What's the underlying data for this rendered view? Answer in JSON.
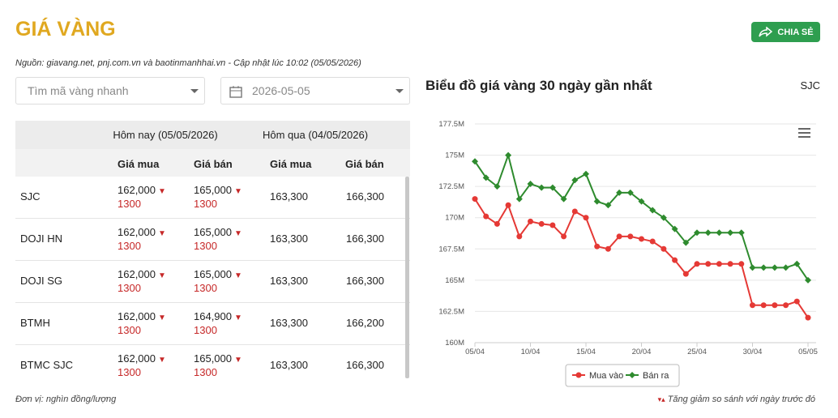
{
  "header": {
    "title": "GIÁ VÀNG",
    "share": "CHIA SẺ",
    "source": "Nguồn: giavang.net, pnj.com.vn và baotinmanhhai.vn - Cập nhật lúc 10:02 (05/05/2026)"
  },
  "controls": {
    "search_placeholder": "Tìm mã vàng nhanh",
    "date": "2026-05-05"
  },
  "table": {
    "group_headers": [
      "Hôm nay (05/05/2026)",
      "Hôm qua (04/05/2026)"
    ],
    "column_headers": [
      "Giá mua",
      "Giá bán",
      "Giá mua",
      "Giá bán"
    ],
    "rows": [
      [
        "SJC",
        "162,000",
        "1300",
        "165,000",
        "1300",
        "163,300",
        "166,300"
      ],
      [
        "DOJI HN",
        "162,000",
        "1300",
        "165,000",
        "1300",
        "163,300",
        "166,300"
      ],
      [
        "DOJI SG",
        "162,000",
        "1300",
        "165,000",
        "1300",
        "163,300",
        "166,300"
      ],
      [
        "BTMH",
        "162,000",
        "1300",
        "164,900",
        "1300",
        "163,300",
        "166,200"
      ],
      [
        "BTMC SJC",
        "162,000",
        "1300",
        "165,000",
        "1300",
        "163,300",
        "166,300"
      ]
    ]
  },
  "footer": {
    "unit": "Đơn vị: nghìn đồng/lượng",
    "note": "Tăng giảm so sánh với ngày trước đó"
  },
  "chart_data": {
    "type": "line",
    "title": "Biểu đồ giá vàng 30 ngày gần nhất",
    "subtitle": "SJC",
    "categories": [
      "05/04",
      null,
      null,
      null,
      null,
      "10/04",
      null,
      null,
      null,
      null,
      "15/04",
      null,
      null,
      null,
      null,
      "20/04",
      null,
      null,
      null,
      null,
      "25/04",
      null,
      null,
      null,
      null,
      "30/04",
      null,
      null,
      null,
      null,
      "05/05"
    ],
    "series": [
      {
        "name": "Mua vào",
        "color": "#e53935",
        "values": [
          171.5,
          170.1,
          169.5,
          171,
          168.5,
          169.7,
          169.5,
          169.4,
          168.5,
          170.5,
          170,
          167.7,
          167.5,
          168.5,
          168.5,
          168.3,
          168.1,
          167.5,
          166.6,
          165.5,
          166.3,
          166.3,
          166.3,
          166.3,
          166.3,
          163,
          163,
          163,
          163,
          163.3,
          162
        ]
      },
      {
        "name": "Bán ra",
        "color": "#2e8b2e",
        "values": [
          174.5,
          173.2,
          172.5,
          175,
          171.5,
          172.7,
          172.4,
          172.4,
          171.5,
          173,
          173.5,
          171.3,
          171,
          172,
          172,
          171.3,
          170.6,
          170,
          169.1,
          168,
          168.8,
          168.8,
          168.8,
          168.8,
          168.8,
          166,
          166,
          166,
          166,
          166.3,
          165
        ]
      }
    ],
    "ylim": [
      160,
      177.5
    ],
    "yticks": [
      {
        "value": 160,
        "label": "160M"
      },
      {
        "value": 162.5,
        "label": "162.5M"
      },
      {
        "value": 165,
        "label": "165M"
      },
      {
        "value": 167.5,
        "label": "167.5M"
      },
      {
        "value": 170,
        "label": "170M"
      },
      {
        "value": 172.5,
        "label": "172.5M"
      },
      {
        "value": 175,
        "label": "175M"
      },
      {
        "value": 177.5,
        "label": "177.5M"
      }
    ],
    "grid": true,
    "legend": "bottom"
  }
}
